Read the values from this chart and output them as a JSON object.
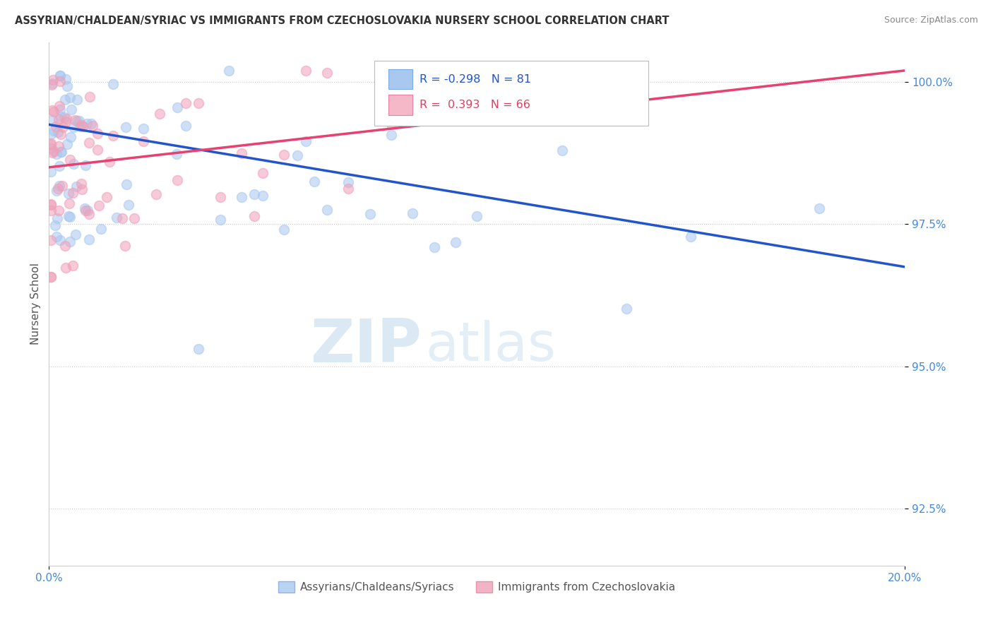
{
  "title": "ASSYRIAN/CHALDEAN/SYRIAC VS IMMIGRANTS FROM CZECHOSLOVAKIA NURSERY SCHOOL CORRELATION CHART",
  "source": "Source: ZipAtlas.com",
  "ylabel": "Nursery School",
  "legend_label1": "Assyrians/Chaldeans/Syriacs",
  "legend_label2": "Immigrants from Czechoslovakia",
  "r1": -0.298,
  "n1": 81,
  "r2": 0.393,
  "n2": 66,
  "color_blue": "#A8C8F0",
  "color_pink": "#F0A0B8",
  "color_blue_line": "#2255CC",
  "color_pink_line": "#E84070",
  "color_blue_legend": "#A8C8F0",
  "color_pink_legend": "#F5B8C8",
  "color_tick": "#4488DD",
  "xlim": [
    0.0,
    20.0
  ],
  "ylim": [
    91.5,
    100.7
  ],
  "yticks": [
    92.5,
    95.0,
    97.5,
    100.0
  ],
  "watermark_zip": "ZIP",
  "watermark_atlas": "atlas",
  "blue_line_x0": 0.0,
  "blue_line_y0": 99.25,
  "blue_line_x1": 20.0,
  "blue_line_y1": 96.75,
  "pink_line_x0": 0.0,
  "pink_line_y0": 98.5,
  "pink_line_x1": 20.0,
  "pink_line_y1": 100.2
}
